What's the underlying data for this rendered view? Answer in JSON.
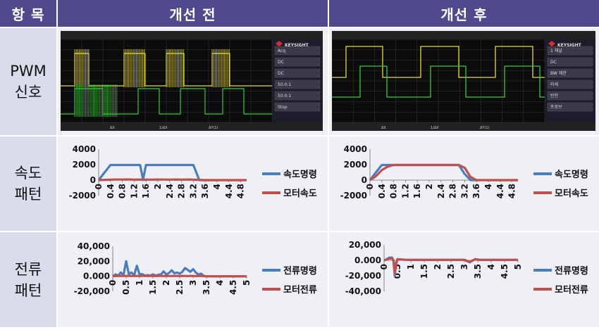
{
  "header": {
    "item": "항 목",
    "before": "개선 전",
    "after": "개선 후"
  },
  "rows": [
    {
      "label": "PWM\n신호"
    },
    {
      "label": "속도\n패턴"
    },
    {
      "label": "전류\n패턴"
    }
  ],
  "colors": {
    "header_bg": "#4f4a8c",
    "label_bg": "#d9dcea",
    "command": "#4a7ebb",
    "motor": "#c0504d",
    "scope_ch1": "#e6dc3c",
    "scope_ch2": "#3cc83c"
  },
  "scope_before": {
    "brand": "KEYSIGHT",
    "side_labels": [
      "Acq",
      "DC",
      "DC",
      "50.0:1",
      "50.0:1",
      "Stop"
    ],
    "status_left": "ΔX",
    "status_mid": "1/ΔX",
    "status_right": "ΔY(1)"
  },
  "scope_after": {
    "brand": "KEYSIGHT",
    "side_labels": [
      "1 채널",
      "DC",
      "BW 제한",
      "미세",
      "반전",
      "프로브"
    ],
    "status_left": "ΔX",
    "status_mid": "1/ΔX",
    "status_right": "ΔY(1)"
  },
  "chart_data": [
    {
      "type": "line",
      "title": "",
      "x": [
        0,
        0.2,
        0.4,
        0.6,
        0.8,
        1.0,
        1.2,
        1.4,
        1.5,
        1.6,
        1.8,
        2.0,
        2.2,
        2.4,
        2.6,
        2.8,
        3.0,
        3.2,
        3.4,
        3.6,
        3.8,
        4.0,
        4.2,
        4.4,
        4.6,
        4.8,
        5.0
      ],
      "xticks": [
        "0",
        "0.4",
        "0.8",
        "1.2",
        "1.6",
        "2",
        "2.4",
        "2.8",
        "3.2",
        "3.6",
        "4",
        "4.4",
        "4.8"
      ],
      "yticks": [
        "4000",
        "2000",
        "0",
        "-2000"
      ],
      "ylim": [
        -2000,
        4000
      ],
      "series": [
        {
          "name": "속도명령",
          "values": [
            0,
            1000,
            1950,
            1950,
            1950,
            1950,
            1950,
            1950,
            100,
            1950,
            1950,
            1950,
            1950,
            1950,
            1950,
            1950,
            1950,
            1950,
            0,
            0,
            0,
            0,
            0,
            0,
            0,
            0,
            0
          ]
        },
        {
          "name": "모터속도",
          "values": [
            0,
            40,
            60,
            80,
            70,
            90,
            60,
            80,
            40,
            70,
            60,
            80,
            70,
            60,
            80,
            60,
            80,
            60,
            30,
            0,
            0,
            0,
            0,
            0,
            0,
            0,
            0
          ]
        }
      ]
    },
    {
      "type": "line",
      "title": "",
      "x": [
        0,
        0.2,
        0.4,
        0.6,
        0.8,
        1.0,
        1.2,
        1.4,
        1.6,
        1.8,
        2.0,
        2.2,
        2.4,
        2.6,
        2.8,
        3.0,
        3.2,
        3.4,
        3.6,
        3.8,
        4.0,
        4.2,
        4.4,
        4.6,
        4.8,
        5.0
      ],
      "xticks": [
        "0",
        "0.4",
        "0.8",
        "1.2",
        "1.6",
        "2",
        "2.4",
        "2.8",
        "3.2",
        "3.6",
        "4",
        "4.4",
        "4.8"
      ],
      "yticks": [
        "4000",
        "2000",
        "0",
        "-2000"
      ],
      "ylim": [
        -2000,
        4000
      ],
      "series": [
        {
          "name": "속도명령",
          "values": [
            0,
            1000,
            1950,
            1950,
            1950,
            1950,
            1950,
            1950,
            1950,
            1950,
            1950,
            1950,
            1950,
            1950,
            1950,
            1950,
            800,
            0,
            0,
            0,
            0,
            0,
            0,
            0,
            0,
            0
          ]
        },
        {
          "name": "모터속도",
          "values": [
            0,
            500,
            1300,
            1750,
            1950,
            1950,
            1950,
            1950,
            1950,
            1950,
            1950,
            1950,
            1950,
            1950,
            1950,
            1950,
            1600,
            400,
            0,
            0,
            0,
            0,
            0,
            0,
            0,
            0
          ]
        }
      ]
    },
    {
      "type": "line",
      "title": "",
      "x": [
        0,
        0.1,
        0.2,
        0.3,
        0.4,
        0.5,
        0.6,
        0.7,
        0.8,
        0.9,
        1.0,
        1.1,
        1.2,
        1.3,
        1.4,
        1.5,
        1.6,
        1.7,
        1.8,
        1.9,
        2.0,
        2.1,
        2.2,
        2.3,
        2.4,
        2.5,
        2.6,
        2.7,
        2.8,
        2.9,
        3.0,
        3.1,
        3.2,
        3.3,
        3.4,
        3.5,
        3.6,
        4.0,
        4.5,
        5.0
      ],
      "xticks": [
        "0",
        "0.5",
        "1",
        "1.5",
        "2",
        "2.5",
        "3",
        "3.5",
        "4",
        "4.5",
        "5"
      ],
      "yticks": [
        "40,000",
        "20,000",
        "0.000",
        "-20,000"
      ],
      "ylim": [
        -20000,
        40000
      ],
      "series": [
        {
          "name": "전류명령",
          "values": [
            0,
            2500,
            800,
            5000,
            1500,
            20000,
            3000,
            5000,
            1500,
            14000,
            2500,
            3000,
            1000,
            1500,
            1000,
            2500,
            1000,
            2000,
            2500,
            6500,
            2500,
            4500,
            8000,
            4000,
            5000,
            3500,
            6000,
            11000,
            8500,
            6000,
            9500,
            5000,
            2500,
            3500,
            500,
            0,
            0,
            0,
            0,
            0
          ]
        },
        {
          "name": "모터전류",
          "values": [
            0,
            300,
            400,
            300,
            500,
            400,
            600,
            300,
            500,
            400,
            300,
            500,
            400,
            300,
            500,
            400,
            300,
            500,
            400,
            300,
            500,
            400,
            300,
            500,
            400,
            300,
            500,
            400,
            300,
            500,
            400,
            300,
            500,
            300,
            200,
            100,
            0,
            0,
            0,
            0
          ]
        }
      ]
    },
    {
      "type": "line",
      "title": "",
      "x": [
        0,
        0.1,
        0.2,
        0.3,
        0.35,
        0.4,
        0.45,
        0.5,
        0.6,
        0.8,
        1.0,
        1.5,
        2.0,
        2.5,
        3.0,
        3.2,
        3.4,
        3.6,
        4.0,
        4.5,
        5.0
      ],
      "xticks": [
        "0",
        "0.5",
        "1",
        "1.5",
        "2",
        "2.5",
        "3",
        "3.5",
        "4",
        "4.5",
        "5"
      ],
      "yticks": [
        "20,000",
        "0.000",
        "-20,000",
        "-40,000"
      ],
      "ylim": [
        -40000,
        20000
      ],
      "series": [
        {
          "name": "전류명령",
          "values": [
            0,
            1500,
            3500,
            3500,
            0,
            -20000,
            -3000,
            1500,
            1200,
            600,
            600,
            500,
            500,
            500,
            500,
            -2500,
            1500,
            500,
            500,
            500,
            500
          ]
        },
        {
          "name": "모터전류",
          "values": [
            0,
            1000,
            2500,
            2500,
            0,
            -17000,
            -5000,
            1500,
            1300,
            700,
            600,
            600,
            600,
            600,
            600,
            -2000,
            1500,
            600,
            600,
            600,
            600
          ]
        }
      ]
    }
  ]
}
